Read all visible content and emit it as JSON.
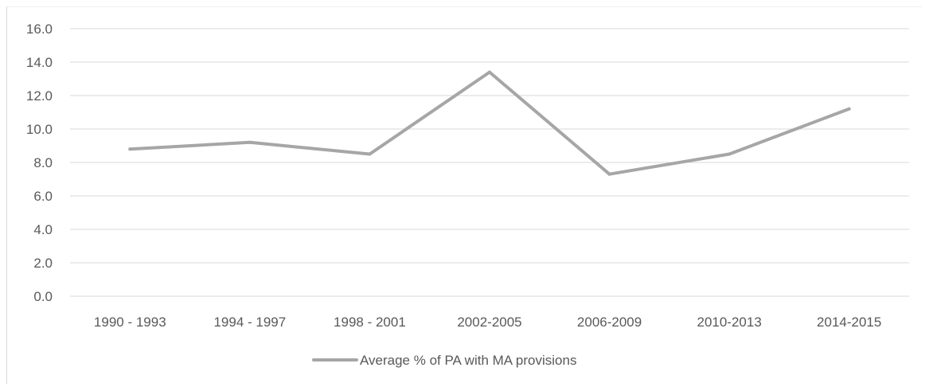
{
  "chart_data": {
    "type": "line",
    "categories": [
      "1990 - 1993",
      "1994 - 1997",
      "1998 - 2001",
      "2002-2005",
      "2006-2009",
      "2010-2013",
      "2014-2015"
    ],
    "series": [
      {
        "name": "Average % of PA with MA provisions",
        "values": [
          8.8,
          9.2,
          8.5,
          13.4,
          7.3,
          8.5,
          11.2
        ],
        "color": "#a6a6a6"
      }
    ],
    "ylim": [
      0,
      16
    ],
    "yticks": [
      "0.0",
      "2.0",
      "4.0",
      "6.0",
      "8.0",
      "10.0",
      "12.0",
      "14.0",
      "16.0"
    ],
    "grid": true,
    "legend_position": "bottom"
  }
}
